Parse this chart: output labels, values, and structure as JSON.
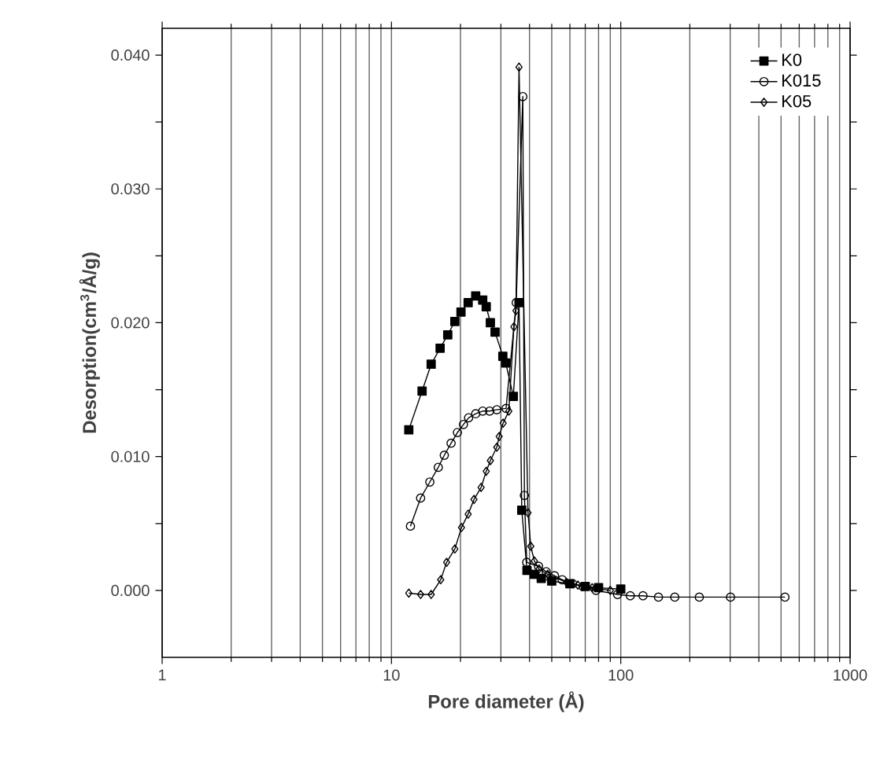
{
  "chart_data": {
    "type": "line",
    "xlabel": "Pore diameter (Å)",
    "ylabel": "Desorption(cm$^{3}$/Å/g)",
    "log": "x",
    "grid": "x",
    "legend": "top right",
    "xlim": [
      1,
      1000
    ],
    "xticks": [
      1,
      10,
      100,
      1000
    ],
    "ylim": [
      -0.005,
      0.042
    ],
    "yticks": [
      {
        "value": 0,
        "label": "0.000"
      },
      {
        "value": 0.005,
        "label": null
      },
      {
        "value": 0.01,
        "label": "0.010"
      },
      {
        "value": 0.015,
        "label": null
      },
      {
        "value": 0.02,
        "label": "0.020"
      },
      {
        "value": 0.025,
        "label": null
      },
      {
        "value": 0.03,
        "label": "0.030"
      },
      {
        "value": 0.035,
        "label": null
      },
      {
        "value": 0.04,
        "label": "0.040"
      }
    ],
    "series": [
      {
        "name": "K0",
        "color": "#000000",
        "marker": "square",
        "x": [
          11.9,
          13.6,
          14.9,
          16.3,
          17.6,
          18.9,
          20.1,
          21.6,
          23.3,
          25.0,
          25.9,
          27.0,
          28.3,
          30.6,
          31.5,
          34,
          36,
          37,
          39,
          42,
          45,
          50,
          60,
          70,
          80,
          100
        ],
        "values": [
          0.012,
          0.0149,
          0.0169,
          0.0181,
          0.0191,
          0.0201,
          0.0208,
          0.0215,
          0.022,
          0.0217,
          0.0212,
          0.02,
          0.0193,
          0.0175,
          0.017,
          0.0145,
          0.0215,
          0.006,
          0.0015,
          0.0012,
          0.0009,
          0.0007,
          0.0005,
          0.0003,
          0.0002,
          0.0001
        ]
      },
      {
        "name": "K015",
        "color": "#000000",
        "marker": "circle",
        "x": [
          12.1,
          13.4,
          14.7,
          16.0,
          17.0,
          18.2,
          19.4,
          20.6,
          21.7,
          23.3,
          25.0,
          26.8,
          28.8,
          31.6,
          35,
          37.4,
          38,
          38.9,
          43.8,
          47.3,
          51.4,
          55.5,
          61.7,
          68.4,
          78,
          96.8,
          110,
          125,
          146,
          172,
          220,
          301,
          520
        ],
        "values": [
          0.0048,
          0.0069,
          0.0081,
          0.0092,
          0.0101,
          0.011,
          0.0118,
          0.0124,
          0.0129,
          0.0132,
          0.0134,
          0.0134,
          0.0135,
          0.0136,
          0.0215,
          0.0369,
          0.0071,
          0.0021,
          0.0018,
          0.0014,
          0.0011,
          0.0008,
          0.0005,
          0.0003,
          0.0,
          -0.0003,
          -0.0004,
          -0.0004,
          -0.0005,
          -0.0005,
          -0.0005,
          -0.0005,
          -0.0005
        ]
      },
      {
        "name": "K05",
        "color": "#000000",
        "marker": "diamond",
        "x": [
          11.9,
          13.4,
          14.9,
          16.4,
          17.4,
          18.9,
          20.2,
          21.6,
          22.9,
          24.6,
          25.9,
          27.0,
          28.8,
          29.5,
          30.7,
          32.5,
          34.2,
          34.9,
          36,
          39.4,
          40.5,
          42,
          44,
          48,
          52,
          58,
          65,
          75,
          90
        ],
        "values": [
          -0.0002,
          -0.0003,
          -0.0003,
          0.0008,
          0.0021,
          0.0031,
          0.0047,
          0.0057,
          0.0068,
          0.0077,
          0.0089,
          0.0097,
          0.0107,
          0.0115,
          0.0125,
          0.0134,
          0.0197,
          0.0209,
          0.0391,
          0.0058,
          0.0033,
          0.0022,
          0.0016,
          0.0012,
          null,
          0.0006,
          0.0004,
          0.0002,
          0.0
        ]
      }
    ]
  }
}
